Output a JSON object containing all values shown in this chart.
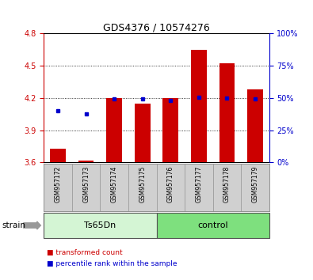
{
  "title": "GDS4376 / 10574276",
  "samples": [
    "GSM957172",
    "GSM957173",
    "GSM957174",
    "GSM957175",
    "GSM957176",
    "GSM957177",
    "GSM957178",
    "GSM957179"
  ],
  "red_values": [
    3.73,
    3.62,
    4.2,
    4.15,
    4.2,
    4.65,
    4.52,
    4.28
  ],
  "blue_values": [
    4.08,
    4.05,
    4.19,
    4.19,
    4.18,
    4.21,
    4.2,
    4.19
  ],
  "baseline": 3.6,
  "ylim": [
    3.6,
    4.8
  ],
  "yticks_left": [
    3.6,
    3.9,
    4.2,
    4.5,
    4.8
  ],
  "yticks_right_pct": [
    0,
    25,
    50,
    75,
    100
  ],
  "groups": [
    {
      "label": "Ts65Dn",
      "start": 0,
      "end": 4,
      "color": "#d4f5d4"
    },
    {
      "label": "control",
      "start": 4,
      "end": 8,
      "color": "#7ee07e"
    }
  ],
  "strain_label": "strain",
  "left_axis_color": "#cc0000",
  "right_axis_color": "#0000cc",
  "bar_color": "#cc0000",
  "dot_color": "#0000cc",
  "label_bg_color": "#d0d0d0",
  "plot_bg_color": "#ffffff",
  "fig_bg_color": "#ffffff",
  "legend_red": "transformed count",
  "legend_blue": "percentile rank within the sample",
  "title_fontsize": 9,
  "tick_fontsize": 7,
  "label_fontsize": 5.5,
  "group_fontsize": 8,
  "legend_fontsize": 6.5,
  "strain_fontsize": 7.5
}
